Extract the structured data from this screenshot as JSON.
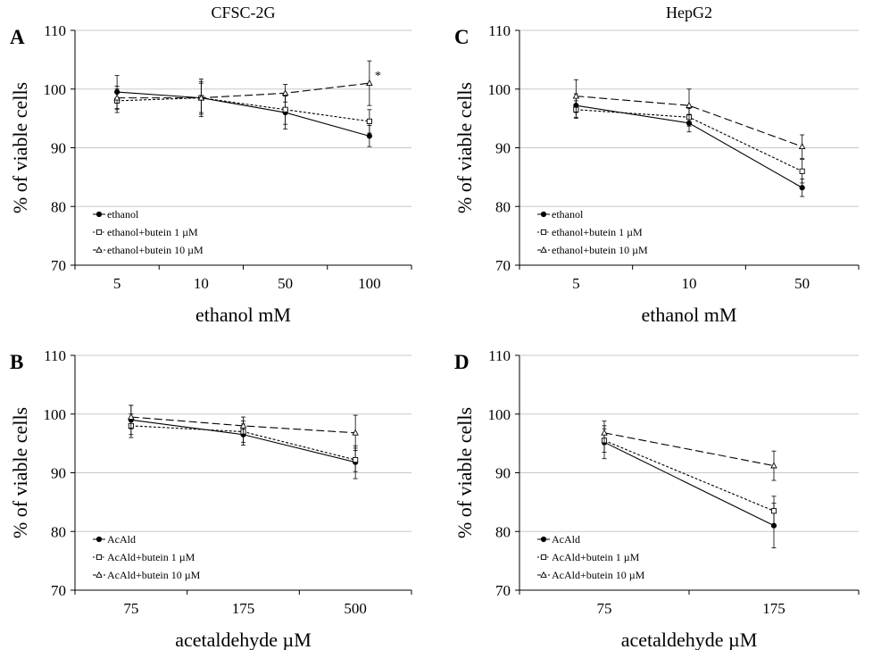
{
  "figure": {
    "colors": {
      "axis": "#000000",
      "grid": "#c8c8c8",
      "line": "#000000",
      "marker_fill_open": "#ffffff"
    }
  },
  "chart_data": [
    {
      "type": "line",
      "panel_letter": "A",
      "title": "CFSC-2G",
      "xlabel": "ethanol mM",
      "ylabel": "% of viable cells",
      "categories": [
        "5",
        "10",
        "50",
        "100"
      ],
      "ylim": [
        70,
        110
      ],
      "yticks": [
        "70",
        "80",
        "90",
        "100",
        "110"
      ],
      "grid": "horizontal",
      "legend_position": "bottom-left",
      "series": [
        {
          "name": "ethanol",
          "marker": "filled-circle",
          "dash": "solid",
          "values": [
            99.5,
            98.5,
            96.0,
            92.0
          ],
          "errors": [
            2.8,
            2.8,
            2.8,
            1.8
          ]
        },
        {
          "name": "ethanol+butein 1 µM",
          "marker": "open-square",
          "dash": "short-dash",
          "values": [
            98.0,
            98.5,
            96.5,
            94.5
          ],
          "errors": [
            2.0,
            3.2,
            2.5,
            2.0
          ]
        },
        {
          "name": "ethanol+butein 10 µM",
          "marker": "open-triangle",
          "dash": "long-dash",
          "values": [
            98.5,
            98.5,
            99.3,
            101.0
          ],
          "errors": [
            2.0,
            2.5,
            1.5,
            3.8
          ]
        }
      ],
      "annotations": [
        {
          "text": "*",
          "category": "100",
          "series": "ethanol+butein 10 µM"
        }
      ]
    },
    {
      "type": "line",
      "panel_letter": "B",
      "title": "",
      "xlabel": "acetaldehyde µM",
      "ylabel": "% of viable cells",
      "categories": [
        "75",
        "175",
        "500"
      ],
      "ylim": [
        70,
        110
      ],
      "yticks": [
        "70",
        "80",
        "90",
        "100",
        "110"
      ],
      "grid": "horizontal",
      "legend_position": "bottom-left",
      "series": [
        {
          "name": "AcAld",
          "marker": "filled-circle",
          "dash": "solid",
          "values": [
            99.0,
            96.5,
            91.8
          ],
          "errors": [
            2.5,
            1.8,
            2.8
          ]
        },
        {
          "name": "AcAld+butein 1 µM",
          "marker": "open-square",
          "dash": "short-dash",
          "values": [
            98.0,
            97.0,
            92.2
          ],
          "errors": [
            2.0,
            1.8,
            2.0
          ]
        },
        {
          "name": "AcAld+butein 10 µM",
          "marker": "open-triangle",
          "dash": "long-dash",
          "values": [
            99.5,
            98.0,
            96.8
          ],
          "errors": [
            2.0,
            1.5,
            3.0
          ]
        }
      ],
      "annotations": []
    },
    {
      "type": "line",
      "panel_letter": "C",
      "title": "HepG2",
      "xlabel": "ethanol mM",
      "ylabel": "% of viable cells",
      "categories": [
        "5",
        "10",
        "50"
      ],
      "ylim": [
        70,
        110
      ],
      "yticks": [
        "70",
        "80",
        "90",
        "100",
        "110"
      ],
      "grid": "horizontal",
      "legend_position": "bottom-left",
      "series": [
        {
          "name": "ethanol",
          "marker": "filled-circle",
          "dash": "solid",
          "values": [
            97.2,
            94.2,
            83.2
          ],
          "errors": [
            2.0,
            1.5,
            1.5
          ]
        },
        {
          "name": "ethanol+butein 1 µM",
          "marker": "open-square",
          "dash": "short-dash",
          "values": [
            96.5,
            95.2,
            86.0
          ],
          "errors": [
            1.5,
            1.5,
            2.0
          ]
        },
        {
          "name": "ethanol+butein 10 µM",
          "marker": "open-triangle",
          "dash": "long-dash",
          "values": [
            98.8,
            97.2,
            90.2
          ],
          "errors": [
            2.8,
            2.8,
            2.0
          ]
        }
      ],
      "annotations": []
    },
    {
      "type": "line",
      "panel_letter": "D",
      "title": "",
      "xlabel": "acetaldehyde µM",
      "ylabel": "% of viable cells",
      "categories": [
        "75",
        "175"
      ],
      "ylim": [
        70,
        110
      ],
      "yticks": [
        "70",
        "80",
        "90",
        "100",
        "110"
      ],
      "grid": "horizontal",
      "legend_position": "bottom-left",
      "series": [
        {
          "name": "AcAld",
          "marker": "filled-circle",
          "dash": "solid",
          "values": [
            95.2,
            81.0
          ],
          "errors": [
            2.8,
            3.8
          ]
        },
        {
          "name": "AcAld+butein 1 µM",
          "marker": "open-square",
          "dash": "short-dash",
          "values": [
            95.5,
            83.5
          ],
          "errors": [
            2.0,
            2.5
          ]
        },
        {
          "name": "AcAld+butein 10 µM",
          "marker": "open-triangle",
          "dash": "long-dash",
          "values": [
            96.8,
            91.2
          ],
          "errors": [
            2.0,
            2.5
          ]
        }
      ],
      "annotations": []
    }
  ]
}
